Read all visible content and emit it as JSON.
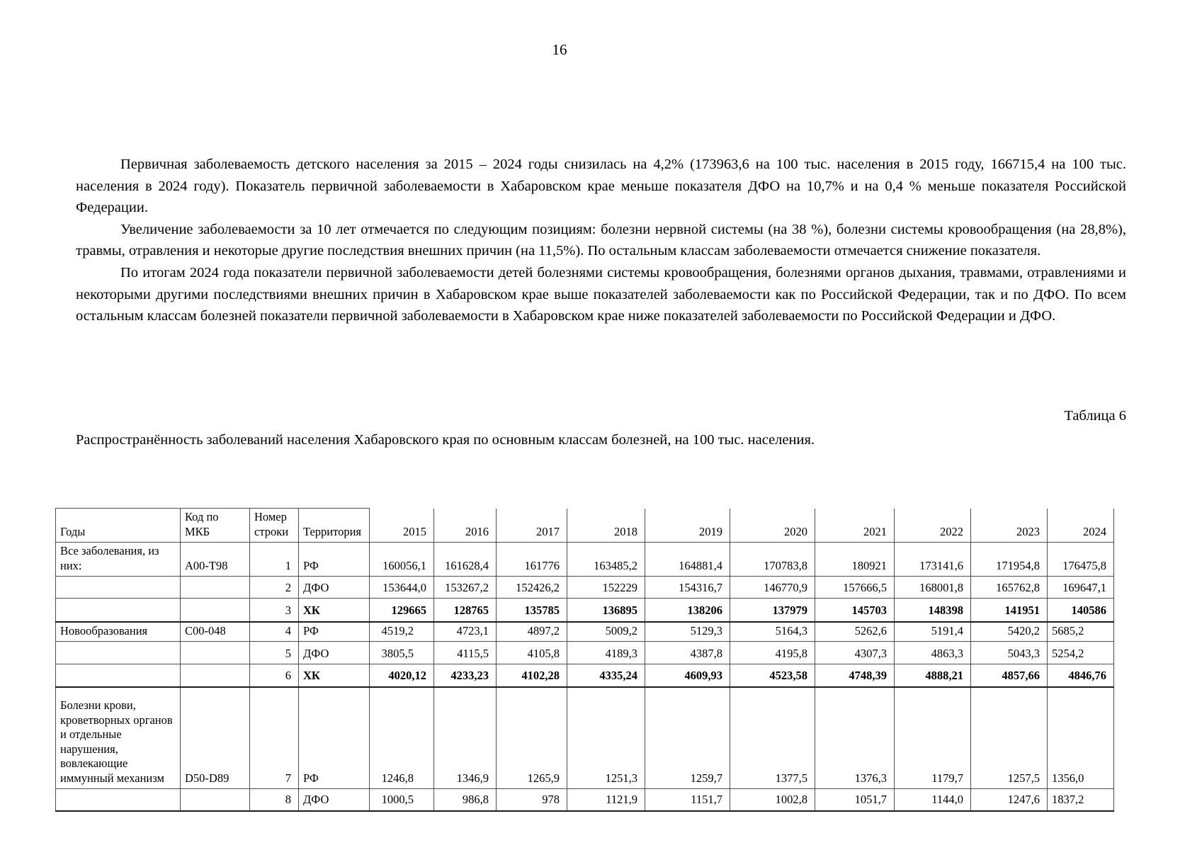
{
  "page": {
    "number": "16"
  },
  "paragraphs": [
    "Первичная заболеваемость детского населения за 2015 – 2024 годы снизилась на 4,2% (173963,6 на 100 тыс. населения в 2015 году, 166715,4 на 100 тыс. населения в 2024 году). Показатель первичной заболеваемости в Хабаровском крае меньше показателя ДФО на 10,7% и на 0,4 % меньше показателя Российской Федерации.",
    "Увеличение заболеваемости за 10 лет отмечается по следующим позициям: болезни нервной системы (на 38 %), болезни системы кровообращения (на 28,8%), травмы, отравления и некоторые другие последствия внешних причин (на 11,5%). По остальным классам заболеваемости отмечается снижение показателя.",
    "По итогам 2024 года показатели первичной заболеваемости детей болезнями системы кровообращения, болезнями органов дыхания, травмами, отравлениями и некоторыми другими последствиями внешних причин в Хабаровском крае выше показателей заболеваемости как по Российской Федерации, так и по ДФО. По всем остальным классам болезней показатели первичной заболеваемости в Хабаровском крае ниже показателей заболеваемости по Российской Федерации и ДФО."
  ],
  "table_label": "Таблица 6",
  "table_caption": "Распространённость заболеваний населения Хабаровского края по основным классам болезней, на 100 тыс. населения.",
  "table": {
    "headers": [
      "Годы",
      "Код по МКБ",
      "Номер строки",
      "Территория",
      "2015",
      "2016",
      "2017",
      "2018",
      "2019",
      "2020",
      "2021",
      "2022",
      "2023",
      "2024"
    ],
    "rows": [
      {
        "bold": false,
        "cells": [
          "Все заболевания, из них:",
          "A00-T98",
          "1",
          "РФ",
          "160056,1",
          "161628,4",
          "161776",
          "163485,2",
          "164881,4",
          "170783,8",
          "180921",
          "173141,6",
          "171954,8",
          "176475,8"
        ]
      },
      {
        "bold": false,
        "cells": [
          "",
          "",
          "2",
          "ДФО",
          "153644,0",
          "153267,2",
          "152426,2",
          "152229",
          "154316,7",
          "146770,9",
          "157666,5",
          "168001,8",
          "165762,8",
          "169647,1"
        ]
      },
      {
        "bold": true,
        "cells": [
          "",
          "",
          "3",
          "ХК",
          "129665",
          "128765",
          "135785",
          "136895",
          "138206",
          "137979",
          "145703",
          "148398",
          "141951",
          "140586"
        ]
      },
      {
        "bold": false,
        "cells": [
          "Новообразования",
          "C00-048",
          "4",
          "РФ",
          "4519,2",
          "4723,1",
          "4897,2",
          "5009,2",
          "5129,3",
          "5164,3",
          "5262,6",
          "5191,4",
          "5420,2",
          "5685,2"
        ]
      },
      {
        "bold": false,
        "cells": [
          "",
          "",
          "5",
          "ДФО",
          "3805,5",
          "4115,5",
          "4105,8",
          "4189,3",
          "4387,8",
          "4195,8",
          "4307,3",
          "4863,3",
          "5043,3",
          "5254,2"
        ]
      },
      {
        "bold": true,
        "cells": [
          "",
          "",
          "6",
          "ХК",
          "4020,12",
          "4233,23",
          "4102,28",
          "4335,24",
          "4609,93",
          "4523,58",
          "4748,39",
          "4888,21",
          "4857,66",
          "4846,76"
        ]
      },
      {
        "bold": false,
        "cells": [
          "Болезни крови, кроветворных органов и отдельные нарушения, вовлекающие иммунный механизм",
          "D50-D89",
          "7",
          "РФ",
          "1246,8",
          "1346,9",
          "1265,9",
          "1251,3",
          "1259,7",
          "1377,5",
          "1376,3",
          "1179,7",
          "1257,5",
          "1356,0"
        ]
      },
      {
        "bold": false,
        "cells": [
          "",
          "",
          "8",
          "ДФО",
          "1000,5",
          "986,8",
          "978",
          "1121,9",
          "1151,7",
          "1002,8",
          "1051,7",
          "1144,0",
          "1247,6",
          "1837,2"
        ]
      }
    ]
  }
}
